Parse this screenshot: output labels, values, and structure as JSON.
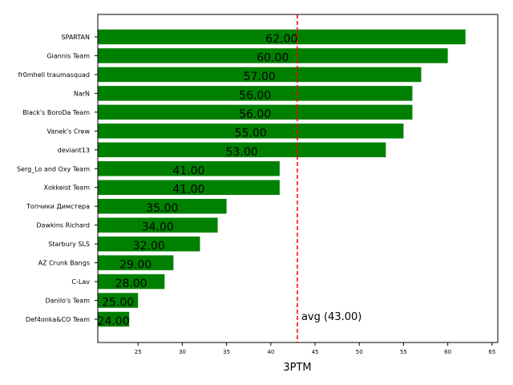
{
  "chart_data": {
    "type": "bar",
    "orientation": "horizontal",
    "categories": [
      "SPARTAN",
      "Giannis Team",
      "fr0mhell traumasquad",
      "NarN",
      "Black's BoroDa Team",
      "Vanek's Crew",
      "deviant13",
      "Serg_Lo and Oxy Team",
      "Xokkeist Team",
      "Топчики Димстера",
      "Dawkins Richard",
      "Starbury SLS",
      "AZ Crunk Bangs",
      "C-Lav",
      "Danilo's Team",
      "Def4onka&CO Team"
    ],
    "values": [
      62,
      60,
      57,
      56,
      56,
      55,
      53,
      41,
      41,
      35,
      34,
      32,
      29,
      28,
      25,
      24
    ],
    "value_labels": [
      "62.00",
      "60.00",
      "57.00",
      "56.00",
      "56.00",
      "55.00",
      "53.00",
      "41.00",
      "41.00",
      "35.00",
      "34.00",
      "32.00",
      "29.00",
      "28.00",
      "25.00",
      "24.00"
    ],
    "xlabel": "3PTM",
    "ylabel": "",
    "title": "",
    "xlim": [
      20.45,
      65.65
    ],
    "xticks": [
      25,
      30,
      35,
      40,
      45,
      50,
      55,
      60,
      65
    ],
    "average": {
      "value": 43,
      "label": "avg (43.00)",
      "color": "#ff0000",
      "style": "dashed"
    },
    "bar_color": "#008000",
    "grid": false
  }
}
